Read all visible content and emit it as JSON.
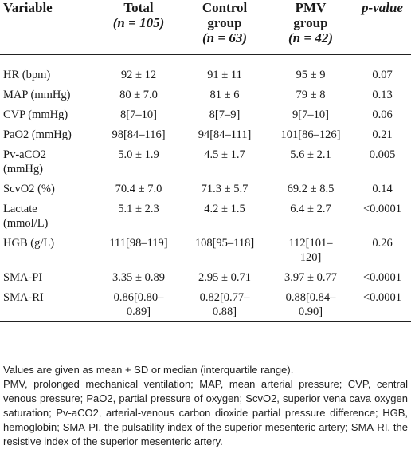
{
  "headers": {
    "variable": "Variable",
    "total": "Total",
    "total_n": "(n = 105)",
    "control": "Control group",
    "control_n": "(n = 63)",
    "pmv": "PMV group",
    "pmv_n": "(n = 42)",
    "p": "p-value"
  },
  "rows": [
    {
      "var": "HR (bpm)",
      "total": "92 ± 12",
      "control": "91 ± 11",
      "pmv": "95 ± 9",
      "p": "0.07"
    },
    {
      "var": "MAP (mmHg)",
      "total": "80 ± 7.0",
      "control": "81 ± 6",
      "pmv": "79 ± 8",
      "p": "0.13"
    },
    {
      "var": "CVP (mmHg)",
      "total": "8[7–10]",
      "control": "8[7–9]",
      "pmv": "9[7–10]",
      "p": "0.06"
    },
    {
      "var": "PaO2 (mmHg)",
      "total": "98[84–116]",
      "control": "94[84–111]",
      "pmv": "101[86–126]",
      "p": "0.21"
    },
    {
      "var": "Pv-aCO2 (mmHg)",
      "total": "5.0 ± 1.9",
      "control": "4.5 ± 1.7",
      "pmv": "5.6 ± 2.1",
      "p": "0.005"
    },
    {
      "var": "ScvO2 (%)",
      "total": "70.4 ± 7.0",
      "control": "71.3 ± 5.7",
      "pmv": "69.2 ± 8.5",
      "p": "0.14"
    },
    {
      "var": "Lactate (mmol/L)",
      "total": "5.1 ± 2.3",
      "control": "4.2 ± 1.5",
      "pmv": "6.4 ± 2.7",
      "p": "<0.0001"
    },
    {
      "var": "HGB (g/L)",
      "total": "111[98–119]",
      "control": "108[95–118]",
      "pmv": "112[101–120]",
      "p": "0.26"
    },
    {
      "var": "SMA-PI",
      "total": "3.35 ± 0.89",
      "control": "2.95 ± 0.71",
      "pmv": "3.97 ± 0.77",
      "p": "<0.0001"
    },
    {
      "var": "SMA-RI",
      "total": "0.86[0.80–0.89]",
      "control": "0.82[0.77–0.88]",
      "pmv": "0.88[0.84–0.90]",
      "p": "<0.0001"
    }
  ],
  "notes": {
    "line1": "Values are given as mean + SD or median (interquartile range).",
    "line2": "PMV, prolonged mechanical ventilation; MAP, mean arterial pressure; CVP, central venous pressure; PaO2, partial pressure of oxygen; ScvO2, superior vena cava oxygen saturation; Pv-aCO2, arterial-venous carbon dioxide partial pressure difference; HGB, hemoglobin; SMA-PI, the pulsatility index of the superior mesenteric artery; SMA-RI, the resistive index of the superior mesenteric artery."
  }
}
